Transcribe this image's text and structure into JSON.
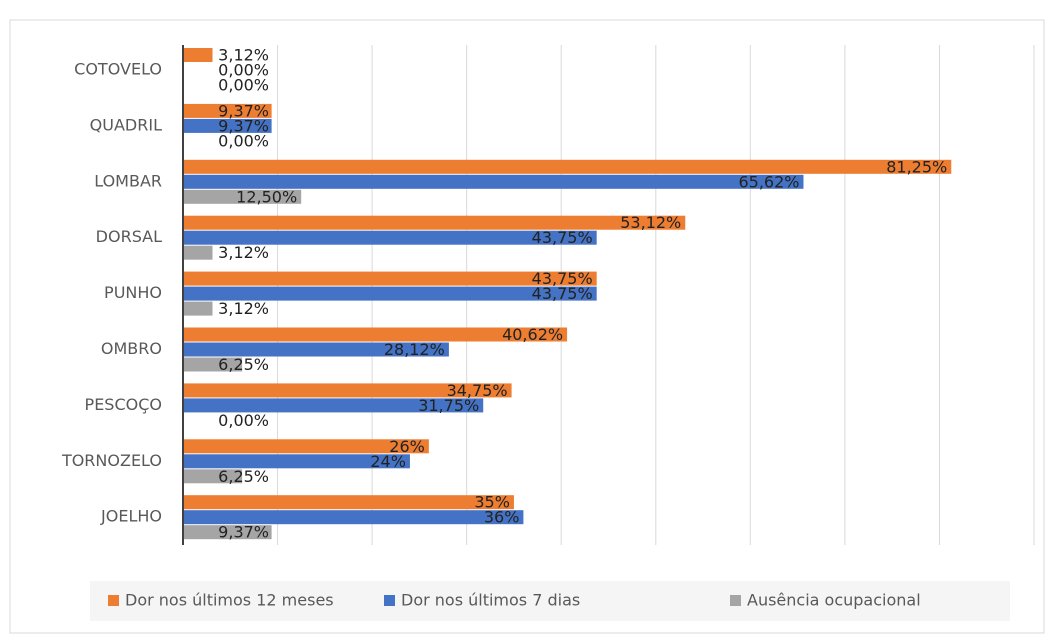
{
  "chart_data": {
    "type": "barh",
    "categories": [
      "COTOVELO",
      "QUADRIL",
      "LOMBAR",
      "DORSAL",
      "PUNHO",
      "OMBRO",
      "PESCOÇO",
      "TORNOZELO",
      "JOELHO"
    ],
    "series": [
      {
        "name": "Dor nos últimos 12 meses",
        "color": "#ed7d31",
        "values": [
          3.12,
          9.37,
          81.25,
          53.12,
          43.75,
          40.62,
          34.75,
          26,
          35
        ],
        "value_labels": [
          "3,12%",
          "9,37%",
          "81,25%",
          "53,12%",
          "43,75%",
          "40,62%",
          "34,75%",
          "26%",
          "35%"
        ]
      },
      {
        "name": "Dor nos últimos 7 dias",
        "color": "#4472c4",
        "values": [
          0,
          9.37,
          65.62,
          43.75,
          43.75,
          28.12,
          31.75,
          24,
          36
        ],
        "value_labels": [
          "0,00%",
          "9,37%",
          "65,62%",
          "43,75%",
          "43,75%",
          "28,12%",
          "31,75%",
          "24%",
          "36%"
        ]
      },
      {
        "name": "Ausência ocupacional",
        "color": "#a5a5a5",
        "values": [
          0,
          0,
          12.5,
          3.12,
          3.12,
          6.25,
          0,
          6.25,
          9.37
        ],
        "value_labels": [
          "0,00%",
          "0,00%",
          "12,50%",
          "3,12%",
          "3,12%",
          "6,25%",
          "0,00%",
          "6,25%",
          "9,37%"
        ]
      }
    ],
    "xlim": [
      0,
      90
    ],
    "xticks": [
      0,
      10,
      20,
      30,
      40,
      50,
      60,
      70,
      80,
      90
    ],
    "grid": true,
    "legend": "bottom"
  }
}
